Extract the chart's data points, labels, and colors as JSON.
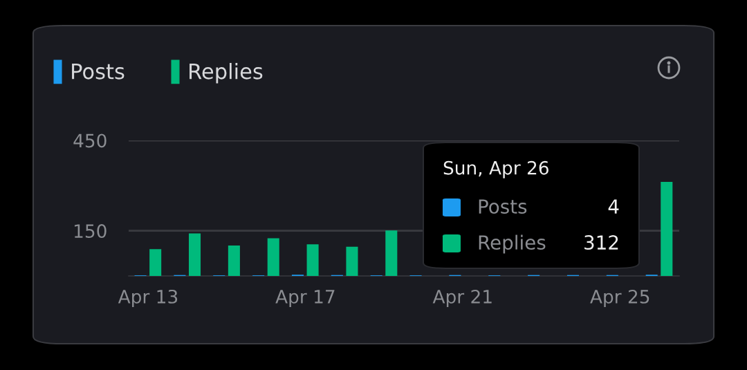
{
  "chart_data": {
    "type": "bar",
    "categories": [
      "Apr 13",
      null,
      null,
      null,
      "Apr 17",
      null,
      null,
      null,
      "Apr 21",
      null,
      null,
      null,
      "Apr 25",
      null
    ],
    "series": [
      {
        "name": "Posts",
        "color": "#1d9bf0",
        "values": [
          2,
          3,
          2,
          2,
          4,
          3,
          2,
          2,
          3,
          2,
          3,
          3,
          3,
          4
        ]
      },
      {
        "name": "Replies",
        "color": "#00ba7c",
        "values": [
          89,
          141,
          101,
          125,
          105,
          97,
          151,
          null,
          null,
          null,
          null,
          null,
          null,
          312
        ]
      }
    ],
    "ylim": [
      0,
      450
    ],
    "yticks": [
      150,
      450
    ],
    "grid": "y",
    "legend": "top left",
    "annotations": [
      "Sun, Apr 26",
      "Posts",
      "4",
      "Replies",
      "312"
    ]
  }
}
